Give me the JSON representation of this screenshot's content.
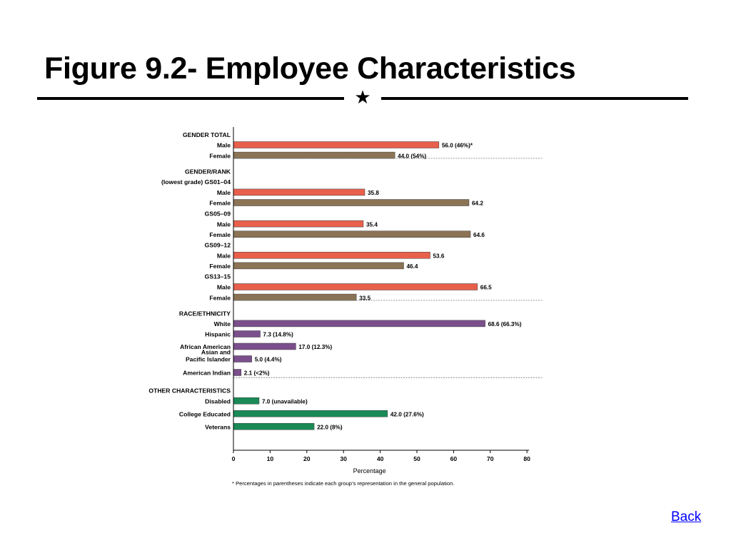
{
  "slide": {
    "title": "Figure 9.2- Employee Characteristics",
    "back_label": "Back",
    "star": "★"
  },
  "colors": {
    "male": "#e8604c",
    "female": "#8b7355",
    "race": "#7b4f8c",
    "other": "#1a8a56",
    "axis": "#000000",
    "separator": "#777777",
    "link": "#0000ff"
  },
  "chart_data": {
    "type": "bar",
    "orientation": "horizontal",
    "xlabel": "Percentage",
    "xlim": [
      0,
      80
    ],
    "xticks": [
      0,
      10,
      20,
      30,
      40,
      50,
      60,
      70,
      80
    ],
    "grid": false,
    "footnote": "* Percentages in parentheses indicate each group’s representation in the general population.",
    "rows": [
      {
        "kind": "heading",
        "text": "GENDER TOTAL"
      },
      {
        "kind": "bar",
        "label": "Male",
        "value": 56.0,
        "value_label": "56.0 (46%)*",
        "color_key": "male"
      },
      {
        "kind": "bar",
        "label": "Female",
        "value": 44.0,
        "value_label": "44.0 (54%)",
        "color_key": "female"
      },
      {
        "kind": "separator"
      },
      {
        "kind": "heading",
        "text": "GENDER/RANK"
      },
      {
        "kind": "subheading",
        "text": "(lowest grade) GS01–04"
      },
      {
        "kind": "bar",
        "label": "Male",
        "value": 35.8,
        "value_label": "35.8",
        "color_key": "male"
      },
      {
        "kind": "bar",
        "label": "Female",
        "value": 64.2,
        "value_label": "64.2",
        "color_key": "female"
      },
      {
        "kind": "subheading",
        "text": "GS05–09"
      },
      {
        "kind": "bar",
        "label": "Male",
        "value": 35.4,
        "value_label": "35.4",
        "color_key": "male"
      },
      {
        "kind": "bar",
        "label": "Female",
        "value": 64.6,
        "value_label": "64.6",
        "color_key": "female"
      },
      {
        "kind": "subheading",
        "text": "GS09–12"
      },
      {
        "kind": "bar",
        "label": "Male",
        "value": 53.6,
        "value_label": "53.6",
        "color_key": "male"
      },
      {
        "kind": "bar",
        "label": "Female",
        "value": 46.4,
        "value_label": "46.4",
        "color_key": "female"
      },
      {
        "kind": "subheading",
        "text": "GS13–15"
      },
      {
        "kind": "bar",
        "label": "Male",
        "value": 66.5,
        "value_label": "66.5",
        "color_key": "male"
      },
      {
        "kind": "bar",
        "label": "Female",
        "value": 33.5,
        "value_label": "33.5",
        "color_key": "female"
      },
      {
        "kind": "separator"
      },
      {
        "kind": "heading",
        "text": "RACE/ETHNICITY"
      },
      {
        "kind": "bar",
        "label": "White",
        "value": 68.6,
        "value_label": "68.6 (66.3%)",
        "color_key": "race"
      },
      {
        "kind": "bar",
        "label": "Hispanic",
        "value": 7.3,
        "value_label": "7.3 (14.8%)",
        "color_key": "race"
      },
      {
        "kind": "bar",
        "label": "African American",
        "value": 17.0,
        "value_label": "17.0 (12.3%)",
        "color_key": "race"
      },
      {
        "kind": "bar",
        "label": "Asian and|Pacific Islander",
        "value": 5.0,
        "value_label": "5.0 (4.4%)",
        "color_key": "race"
      },
      {
        "kind": "bar",
        "label": "American Indian",
        "value": 2.1,
        "value_label": "2.1 (<2%)",
        "color_key": "race"
      },
      {
        "kind": "separator"
      },
      {
        "kind": "heading",
        "text": "OTHER CHARACTERISTICS"
      },
      {
        "kind": "bar",
        "label": "Disabled",
        "value": 7.0,
        "value_label": "7.0 (unavailable)",
        "color_key": "other"
      },
      {
        "kind": "bar",
        "label": "College Educated",
        "value": 42.0,
        "value_label": "42.0 (27.6%)",
        "color_key": "other"
      },
      {
        "kind": "bar",
        "label": "Veterans",
        "value": 22.0,
        "value_label": "22.0 (8%)",
        "color_key": "other"
      }
    ]
  }
}
